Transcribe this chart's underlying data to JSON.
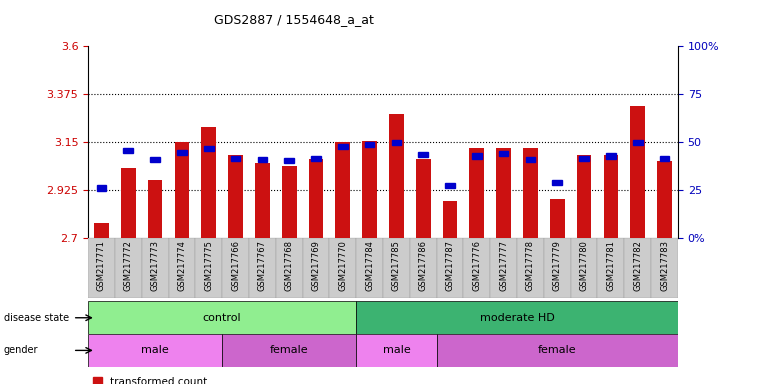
{
  "title": "GDS2887 / 1554648_a_at",
  "samples": [
    "GSM217771",
    "GSM217772",
    "GSM217773",
    "GSM217774",
    "GSM217775",
    "GSM217766",
    "GSM217767",
    "GSM217768",
    "GSM217769",
    "GSM217770",
    "GSM217784",
    "GSM217785",
    "GSM217786",
    "GSM217787",
    "GSM217776",
    "GSM217777",
    "GSM217778",
    "GSM217779",
    "GSM217780",
    "GSM217781",
    "GSM217782",
    "GSM217783"
  ],
  "red_bar_heights": [
    2.77,
    3.03,
    2.97,
    3.15,
    3.22,
    3.09,
    3.05,
    3.04,
    3.07,
    3.15,
    3.155,
    3.28,
    3.07,
    2.875,
    3.12,
    3.12,
    3.12,
    2.885,
    3.09,
    3.09,
    3.32,
    3.06
  ],
  "blue_dot_values": [
    2.935,
    3.11,
    3.07,
    3.1,
    3.12,
    3.075,
    3.07,
    3.065,
    3.075,
    3.13,
    3.14,
    3.15,
    3.09,
    2.945,
    3.085,
    3.095,
    3.07,
    2.96,
    3.075,
    3.085,
    3.15,
    3.075
  ],
  "y_min": 2.7,
  "y_max": 3.6,
  "y_ticks_left": [
    2.7,
    2.925,
    3.15,
    3.375,
    3.6
  ],
  "y_ticks_right_vals": [
    0,
    25,
    50,
    75,
    100
  ],
  "y_ticks_right_labels": [
    "0%",
    "25",
    "50",
    "75",
    "100%"
  ],
  "disease_state_groups": [
    {
      "label": "control",
      "start": 0,
      "end": 10,
      "color": "#90EE90"
    },
    {
      "label": "moderate HD",
      "start": 10,
      "end": 22,
      "color": "#3CB371"
    }
  ],
  "gender_groups": [
    {
      "label": "male",
      "start": 0,
      "end": 5,
      "color": "#EE82EE"
    },
    {
      "label": "female",
      "start": 5,
      "end": 10,
      "color": "#CC66CC"
    },
    {
      "label": "male",
      "start": 10,
      "end": 13,
      "color": "#EE82EE"
    },
    {
      "label": "female",
      "start": 13,
      "end": 22,
      "color": "#CC66CC"
    }
  ],
  "bar_color": "#CC1111",
  "dot_color": "#0000CC",
  "left_axis_color": "#CC0000",
  "right_axis_color": "#0000BB",
  "dotted_line_values": [
    2.925,
    3.15,
    3.375
  ]
}
